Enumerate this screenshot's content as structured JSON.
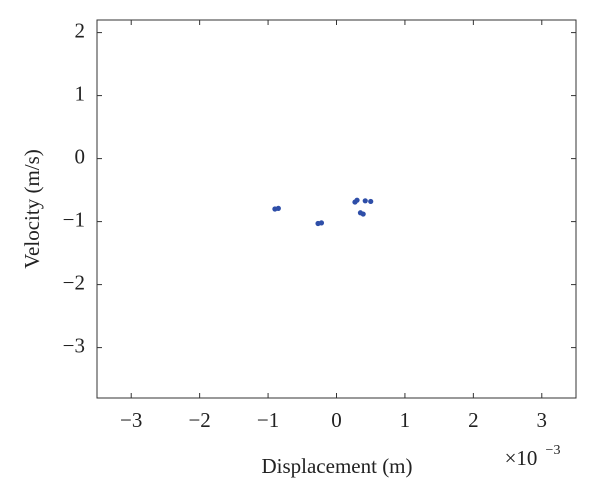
{
  "chart_data": {
    "type": "scatter",
    "x_label": "Displacement (m)",
    "y_label": "Velocity (m/s)",
    "x_multiplier": "×10",
    "x_multiplier_exponent": "−3",
    "color": "#2e4ea8",
    "x": [
      -0.9,
      -0.85,
      -0.27,
      -0.22,
      0.27,
      0.3,
      0.42,
      0.5,
      0.35,
      0.39
    ],
    "values": [
      -0.8,
      -0.79,
      -1.03,
      -1.02,
      -0.69,
      -0.66,
      -0.67,
      -0.68,
      -0.86,
      -0.88
    ],
    "xlim": [
      -3.5,
      3.5
    ],
    "xticks": [
      {
        "value": -3,
        "label": "−3"
      },
      {
        "value": -2,
        "label": "−2"
      },
      {
        "value": -1,
        "label": "−1"
      },
      0,
      1,
      2,
      3
    ],
    "ylim": [
      -3.8,
      2.2
    ],
    "yticks": [
      {
        "value": -3,
        "label": "−3"
      },
      {
        "value": -2,
        "label": "−2"
      },
      {
        "value": -1,
        "label": "−1"
      },
      0,
      1,
      2
    ],
    "grid": false
  }
}
